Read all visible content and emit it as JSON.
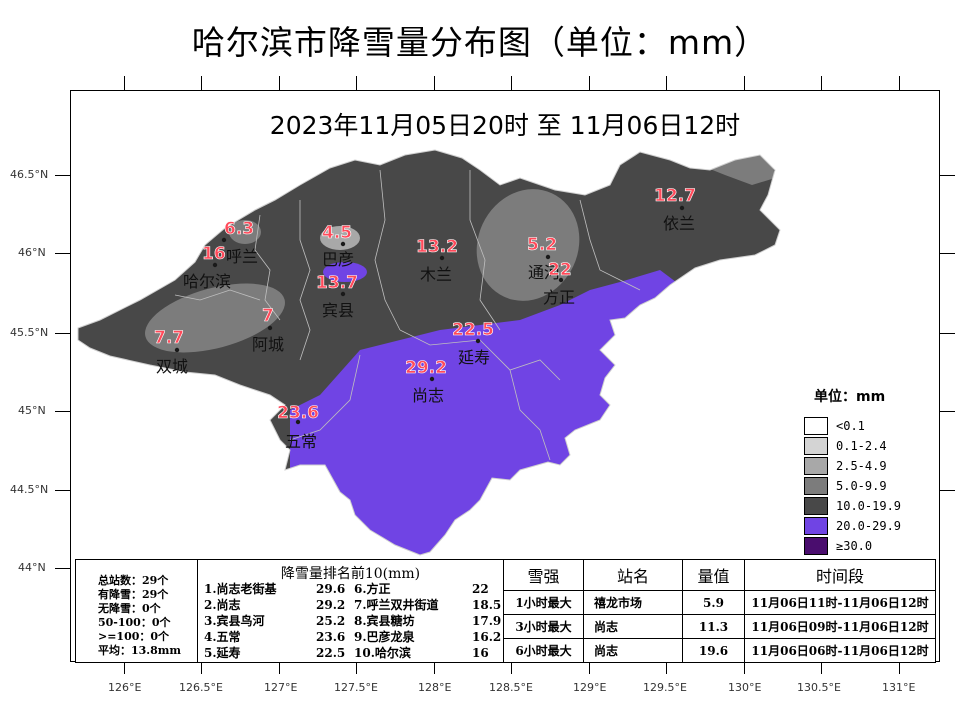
{
  "title": "哈尔滨市降雪量分布图（单位：mm）",
  "subtitle": "2023年11月05日20时 至 11月06日12时",
  "lat_labels": [
    "46.5°N",
    "46°N",
    "45.5°N",
    "45°N",
    "44.5°N",
    "44°N"
  ],
  "lon_labels": [
    "126°E",
    "126.5°E",
    "127°E",
    "127.5°E",
    "128°E",
    "128.5°E",
    "129°E",
    "129.5°E",
    "130°E",
    "130.5°E",
    "131°E"
  ],
  "regions": [
    {
      "name": "依兰",
      "value": "12.7"
    },
    {
      "name": "通河",
      "value": "5.2"
    },
    {
      "name": "木兰",
      "value": "13.2"
    },
    {
      "name": "巴彦",
      "value": "4.5"
    },
    {
      "name": "宾县",
      "value": "13.7"
    },
    {
      "name": "呼兰",
      "value": "6.3"
    },
    {
      "name": "哈尔滨",
      "value": "16"
    },
    {
      "name": "阿城",
      "value": "7"
    },
    {
      "name": "双城",
      "value": "7.7"
    },
    {
      "name": "方正",
      "value": "22"
    },
    {
      "name": "延寿",
      "value": "22.5"
    },
    {
      "name": "尚志",
      "value": "29.2"
    },
    {
      "name": "五常",
      "value": "23.6"
    }
  ],
  "legend": {
    "title": "单位：mm",
    "items": [
      {
        "label": "<0.1",
        "color": "#ffffff"
      },
      {
        "label": "0.1-2.4",
        "color": "#d4d4d4"
      },
      {
        "label": "2.5-4.9",
        "color": "#a8a8a8"
      },
      {
        "label": "5.0-9.9",
        "color": "#7c7c7c"
      },
      {
        "label": "10.0-19.9",
        "color": "#484848"
      },
      {
        "label": "20.0-29.9",
        "color": "#7044e4"
      },
      {
        "label": "≥30.0",
        "color": "#4a0d6e"
      }
    ]
  },
  "stats": {
    "lines": [
      "总站数：29个",
      "有降雪：29个",
      "无降雪：0个",
      "50-100：0个",
      ">=100：0个",
      "平均：13.8mm"
    ]
  },
  "ranking": {
    "title": "降雪量排名前10(mm)",
    "items": [
      {
        "name": "1.尚志老街基",
        "value": "29.6"
      },
      {
        "name": "2.尚志",
        "value": "29.2"
      },
      {
        "name": "3.宾县鸟河",
        "value": "25.2"
      },
      {
        "name": "4.五常",
        "value": "23.6"
      },
      {
        "name": "5.延寿",
        "value": "22.5"
      },
      {
        "name": "6.方正",
        "value": "22"
      },
      {
        "name": "7.呼兰双井街道",
        "value": "18.5"
      },
      {
        "name": "8.宾县糖坊",
        "value": "17.9"
      },
      {
        "name": "9.巴彦龙泉",
        "value": "16.2"
      },
      {
        "name": "10.哈尔滨",
        "value": "16"
      }
    ]
  },
  "extremes": {
    "headers": [
      "雪强",
      "站名",
      "量值",
      "时间段"
    ],
    "rows": [
      {
        "type": "1小时最大",
        "station": "禧龙市场",
        "value": "5.9",
        "period": "11月06日11时-11月06日12时"
      },
      {
        "type": "3小时最大",
        "station": "尚志",
        "value": "11.3",
        "period": "11月06日09时-11月06日12时"
      },
      {
        "type": "6小时最大",
        "station": "尚志",
        "value": "19.6",
        "period": "11月06日06时-11月06日12时"
      }
    ]
  }
}
